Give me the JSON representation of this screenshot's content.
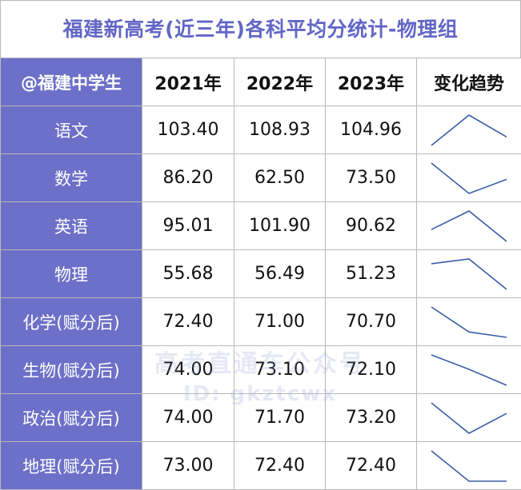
{
  "title": "福建新高考(近三年)各科平均分统计-物理组",
  "header": {
    "corner": "@福建中学生",
    "years": [
      "2021年",
      "2022年",
      "2023年"
    ],
    "trend": "变化趋势"
  },
  "rows": [
    {
      "subject": "语文",
      "values": [
        "103.40",
        "108.93",
        "104.96"
      ]
    },
    {
      "subject": "数学",
      "values": [
        "86.20",
        "62.50",
        "73.50"
      ]
    },
    {
      "subject": "英语",
      "values": [
        "95.01",
        "101.90",
        "90.62"
      ]
    },
    {
      "subject": "物理",
      "values": [
        "55.68",
        "56.49",
        "51.23"
      ]
    },
    {
      "subject": "化学(赋分后)",
      "values": [
        "72.40",
        "71.00",
        "70.70"
      ]
    },
    {
      "subject": "生物(赋分后)",
      "values": [
        "74.00",
        "73.10",
        "72.10"
      ]
    },
    {
      "subject": "政治(赋分后)",
      "values": [
        "74.00",
        "71.70",
        "73.20"
      ]
    },
    {
      "subject": "地理(赋分后)",
      "values": [
        "73.00",
        "72.40",
        "72.40"
      ]
    }
  ],
  "watermark": {
    "line1": "高考直通车公众号",
    "line2": "ID: gkztcwx"
  },
  "colors": {
    "accent": "#6c70c8",
    "title": "#6266c6",
    "trend_line": "#3a5ea8"
  }
}
